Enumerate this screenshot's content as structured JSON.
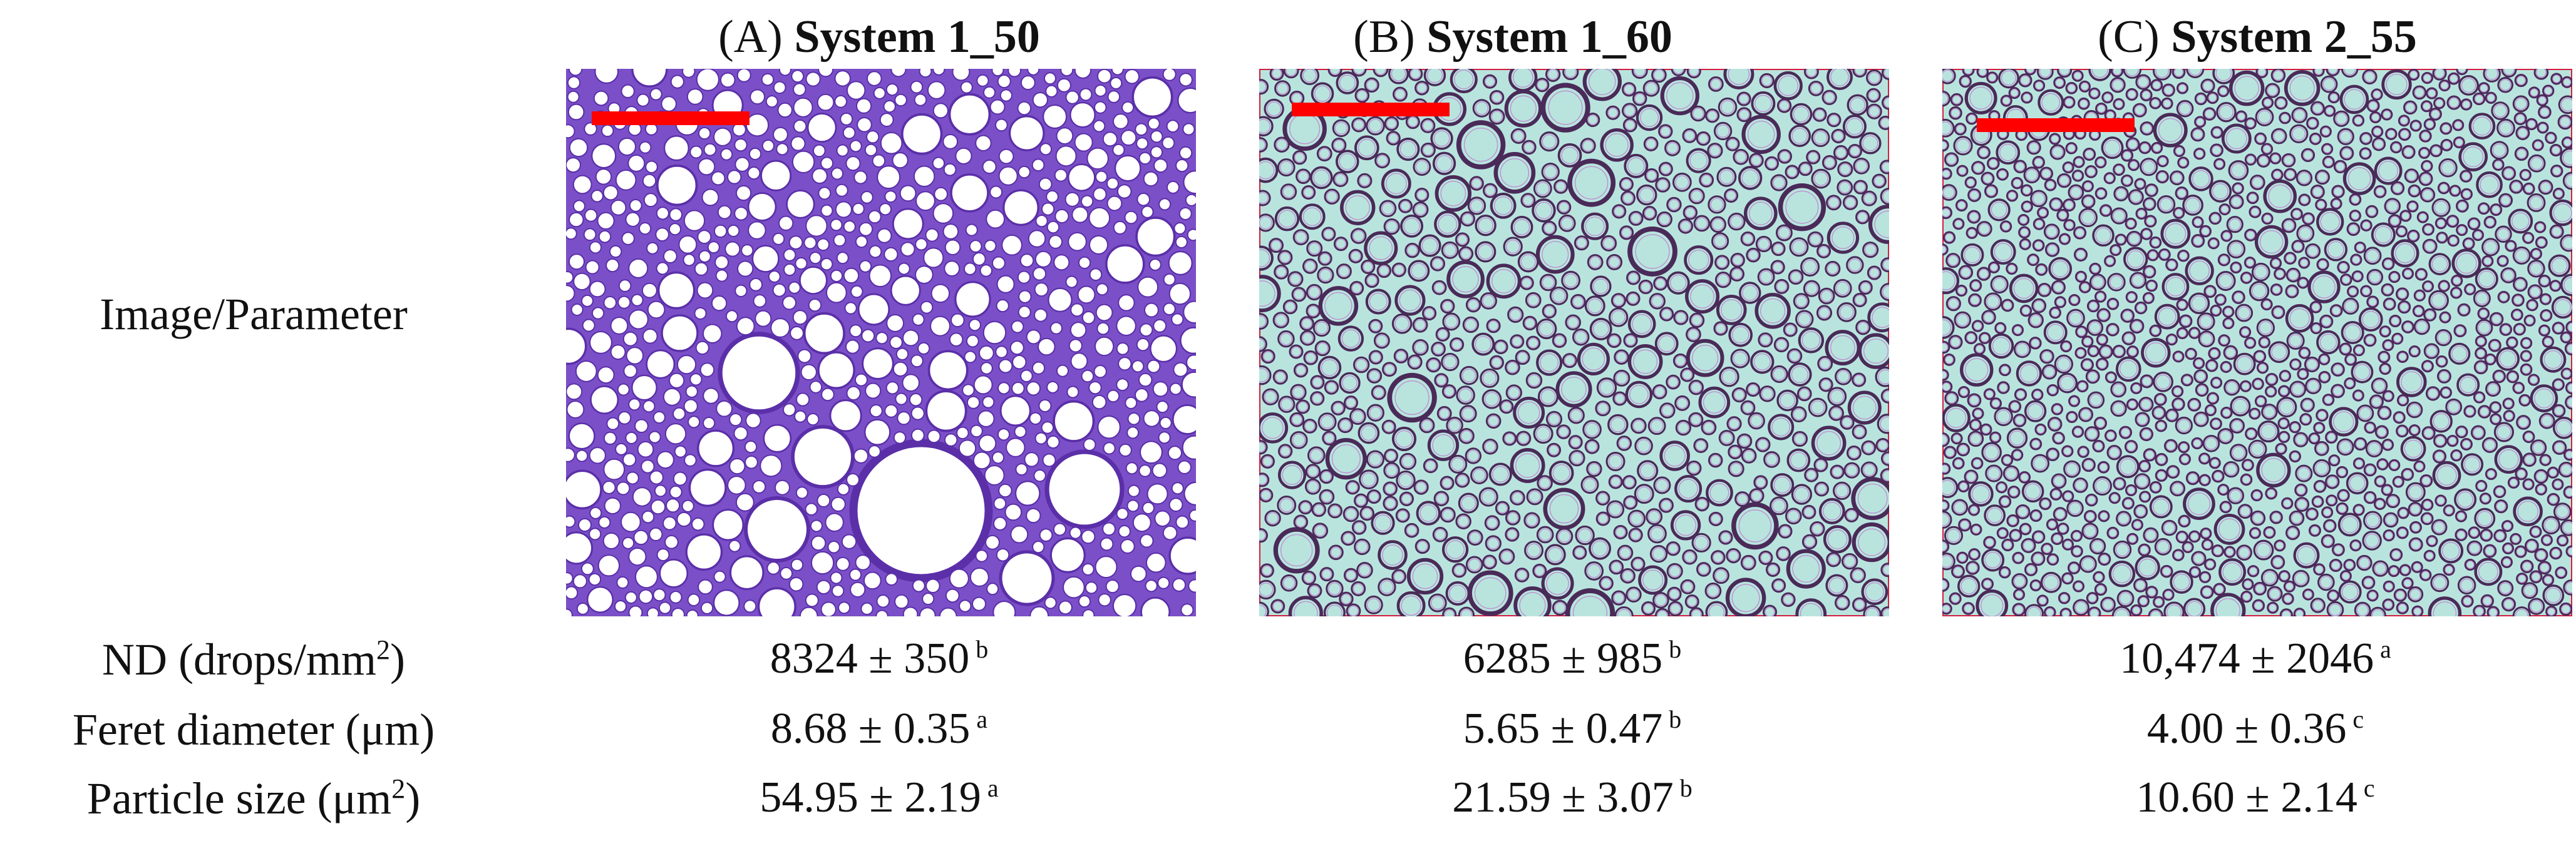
{
  "row_header": "Image/Parameter",
  "columns": [
    {
      "letter": "(A)",
      "name": "System 1_50",
      "style": "purple"
    },
    {
      "letter": "(B)",
      "name": "System 1_60",
      "style": "cyan"
    },
    {
      "letter": "(C)",
      "name": "System 2_55",
      "style": "cyan-fine"
    }
  ],
  "rows": [
    {
      "label_main": "ND (drops/mm",
      "label_sup": "2",
      "label_tail": ")",
      "cells": [
        {
          "value": "8324 ± 350",
          "sup": "b"
        },
        {
          "value": "6285 ± 985",
          "sup": "b"
        },
        {
          "value": "10,474 ± 2046",
          "sup": "a"
        }
      ]
    },
    {
      "label_main": "Feret diameter (μm)",
      "label_sup": "",
      "label_tail": "",
      "cells": [
        {
          "value": "8.68 ± 0.35",
          "sup": "a"
        },
        {
          "value": "5.65 ± 0.47",
          "sup": "b"
        },
        {
          "value": "4.00 ± 0.36",
          "sup": "c"
        }
      ]
    },
    {
      "label_main": "Particle size (μm",
      "label_sup": "2",
      "label_tail": ")",
      "cells": [
        {
          "value": "54.95 ± 2.19",
          "sup": "a"
        },
        {
          "value": "21.59 ± 3.07",
          "sup": "b"
        },
        {
          "value": "10.60 ± 2.14",
          "sup": "c"
        }
      ]
    }
  ],
  "colors": {
    "scale_bar": "#ff0000",
    "purple_bg": "#7b4fc7",
    "purple_rim": "#5a2fa8",
    "cyan_bg": "#b9e4de",
    "cyan_rim": "#4a2a58",
    "frame_red": "#d02040"
  }
}
